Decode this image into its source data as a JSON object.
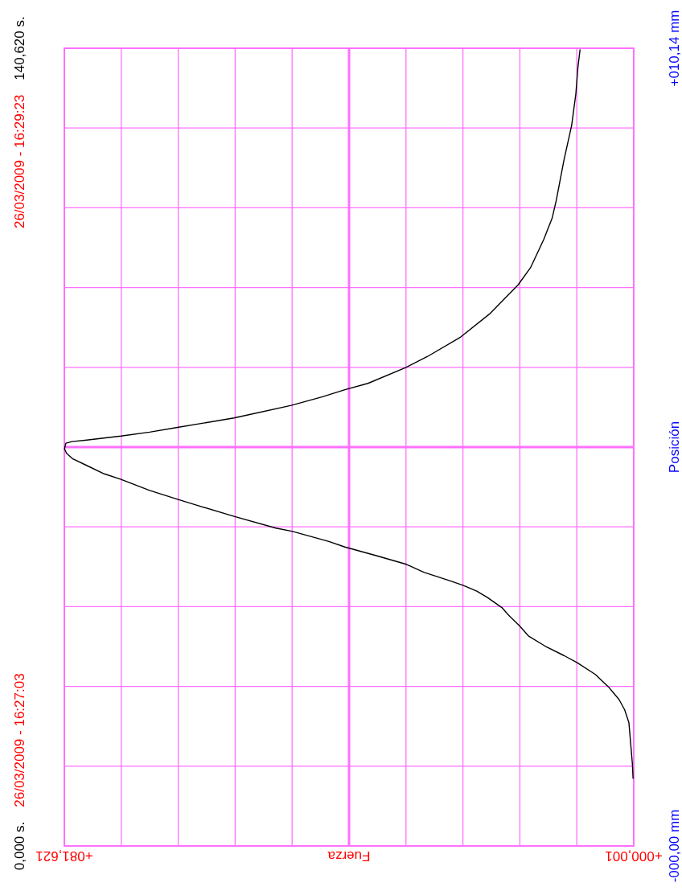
{
  "chart_data": {
    "type": "line",
    "xlabel": "Fuerza",
    "ylabel": "Posición",
    "x": [
      0.1,
      0.2,
      0.7,
      1.3,
      2.1,
      3.6,
      5.5,
      8.1,
      10.0,
      12.7,
      15.1,
      16.4,
      17.8,
      18.9,
      21.0,
      22.5,
      24.4,
      26.3,
      30.1,
      32.6,
      36.9,
      41.4,
      43.7,
      49.0,
      51.3,
      57.3,
      62.6,
      65.5,
      69.4,
      73.5,
      75.9,
      78.5,
      80.4,
      81.3,
      81.6,
      81.4,
      80.5,
      78.4,
      73.5,
      69.4,
      65.4,
      57.3,
      49.1,
      44.6,
      41.4,
      38.1,
      32.7,
      29.6,
      24.8,
      20.7,
      16.6,
      14.8,
      12.9,
      11.7,
      11.1,
      10.0,
      8.9,
      8.3,
      8.0,
      7.7
    ],
    "series": [
      {
        "color": "#000000",
        "values": [
          0.86,
          1.05,
          1.57,
          1.73,
          1.86,
          2.02,
          2.18,
          2.33,
          2.42,
          2.54,
          2.67,
          2.8,
          2.92,
          3.03,
          3.16,
          3.24,
          3.31,
          3.37,
          3.48,
          3.58,
          3.69,
          3.8,
          3.87,
          4.0,
          4.04,
          4.19,
          4.33,
          4.41,
          4.52,
          4.66,
          4.73,
          4.84,
          4.92,
          4.99,
          5.05,
          5.12,
          5.14,
          5.16,
          5.21,
          5.26,
          5.32,
          5.44,
          5.6,
          5.71,
          5.8,
          5.88,
          6.08,
          6.22,
          6.47,
          6.76,
          7.13,
          7.35,
          7.71,
          7.98,
          8.21,
          8.72,
          9.16,
          9.56,
          9.9,
          10.12
        ]
      }
    ],
    "xlim": [
      81.621,
      0.001
    ],
    "xticks": [
      {
        "value": 81.621,
        "label": "+081,621"
      },
      {
        "value": 73.459,
        "label": null
      },
      {
        "value": 65.297,
        "label": null
      },
      {
        "value": 57.135,
        "label": null
      },
      {
        "value": 48.973,
        "label": null
      },
      {
        "value": 40.811,
        "label": null
      },
      {
        "value": 32.649,
        "label": null
      },
      {
        "value": 24.487,
        "label": null
      },
      {
        "value": 16.325,
        "label": null
      },
      {
        "value": 8.163,
        "label": null
      },
      {
        "value": 0.001,
        "label": "+000,001"
      }
    ],
    "ylim": [
      0,
      10.14
    ],
    "yticks": [
      {
        "value": 0,
        "label": "-000,00 mm"
      },
      {
        "value": 1.014,
        "label": null
      },
      {
        "value": 2.028,
        "label": null
      },
      {
        "value": 3.042,
        "label": null
      },
      {
        "value": 4.056,
        "label": null
      },
      {
        "value": 5.07,
        "label": null
      },
      {
        "value": 6.084,
        "label": null
      },
      {
        "value": 7.098,
        "label": null
      },
      {
        "value": 8.112,
        "label": null
      },
      {
        "value": 9.126,
        "label": null
      },
      {
        "value": 10.14,
        "label": "+010,14 mm"
      }
    ],
    "y2lim": [
      0,
      140.62
    ],
    "y2ticks": [
      {
        "value": 0,
        "label": "0,000 s."
      },
      {
        "value": 140.62,
        "label": "140,620 s."
      }
    ],
    "annotations": [
      "26/03/2009 - 16:27:03",
      "26/03/2009 - 16:29:23"
    ],
    "grid": true
  }
}
